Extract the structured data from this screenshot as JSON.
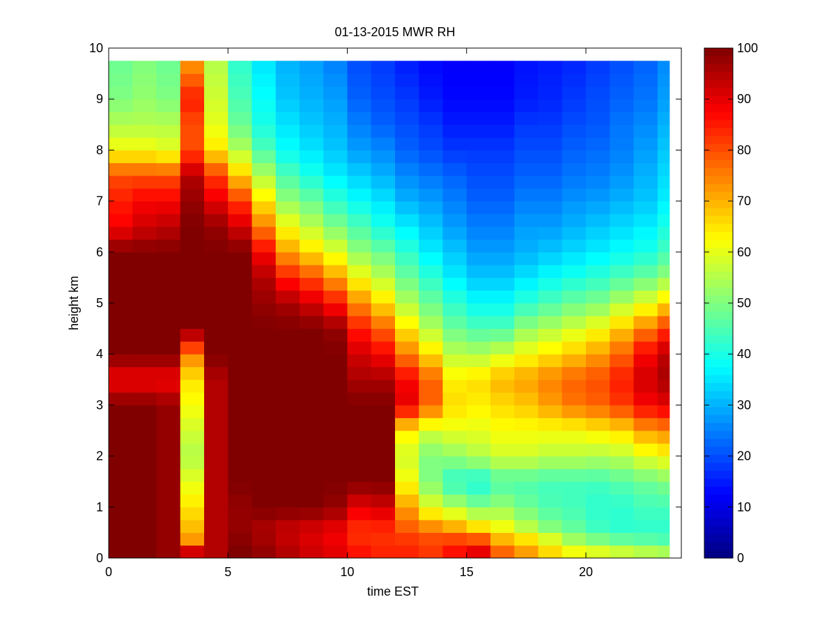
{
  "chart_data": {
    "type": "heatmap",
    "title": "01-13-2015 MWR RH",
    "xlabel": "time EST",
    "ylabel": "height km",
    "xlim": [
      0,
      24
    ],
    "ylim": [
      0,
      10
    ],
    "xticks": [
      0,
      5,
      10,
      15,
      20
    ],
    "yticks": [
      0,
      1,
      2,
      3,
      4,
      5,
      6,
      7,
      8,
      9,
      10
    ],
    "colorbar": {
      "label_ticks": [
        0,
        10,
        20,
        30,
        40,
        50,
        60,
        70,
        80,
        90,
        100
      ],
      "range": [
        0,
        100
      ],
      "colormap": "jet"
    },
    "x_centers": [
      0.5,
      1.5,
      2.5,
      3.5,
      4.5,
      5.5,
      6.5,
      7.5,
      8.5,
      9.5,
      10.5,
      11.5,
      12.5,
      13.5,
      14.5,
      15.5,
      16.5,
      17.5,
      18.5,
      19.5,
      20.5,
      21.5,
      22.5,
      23.5
    ],
    "y_knots": [
      0,
      0.1,
      0.25,
      0.5,
      1,
      1.5,
      2,
      2.5,
      3,
      3.5,
      4,
      4.5,
      5,
      5.5,
      6,
      6.5,
      7,
      7.5,
      8,
      8.5,
      9,
      9.75
    ],
    "profiles": [
      [
        88,
        100,
        100,
        100,
        100,
        100,
        100,
        100,
        100,
        88,
        100,
        100,
        100,
        100,
        100,
        88,
        85,
        80,
        62,
        55,
        50,
        48
      ],
      [
        88,
        100,
        100,
        100,
        100,
        100,
        100,
        100,
        100,
        88,
        100,
        100,
        100,
        100,
        100,
        92,
        88,
        80,
        62,
        55,
        52,
        50
      ],
      [
        90,
        98,
        98,
        98,
        98,
        98,
        98,
        98,
        98,
        88,
        100,
        100,
        100,
        100,
        100,
        94,
        88,
        80,
        60,
        55,
        50,
        48
      ],
      [
        92,
        95,
        75,
        70,
        65,
        60,
        55,
        58,
        62,
        65,
        75,
        100,
        100,
        100,
        100,
        100,
        98,
        95,
        80,
        80,
        85,
        72
      ],
      [
        92,
        95,
        95,
        95,
        95,
        95,
        95,
        95,
        95,
        95,
        100,
        100,
        100,
        100,
        100,
        98,
        90,
        82,
        65,
        60,
        58,
        55
      ],
      [
        90,
        100,
        100,
        98,
        98,
        100,
        100,
        100,
        100,
        100,
        100,
        100,
        100,
        100,
        100,
        92,
        82,
        68,
        55,
        48,
        45,
        42
      ],
      [
        90,
        98,
        98,
        95,
        100,
        100,
        100,
        100,
        100,
        100,
        100,
        100,
        98,
        95,
        88,
        75,
        65,
        55,
        45,
        40,
        38,
        35
      ],
      [
        86,
        95,
        95,
        92,
        100,
        100,
        100,
        100,
        100,
        100,
        100,
        100,
        96,
        85,
        72,
        62,
        52,
        45,
        38,
        35,
        32,
        30
      ],
      [
        84,
        92,
        92,
        90,
        100,
        100,
        100,
        100,
        100,
        100,
        100,
        100,
        92,
        80,
        66,
        56,
        48,
        40,
        35,
        32,
        30,
        28
      ],
      [
        82,
        90,
        90,
        88,
        98,
        100,
        100,
        100,
        100,
        100,
        100,
        98,
        86,
        72,
        60,
        50,
        42,
        36,
        32,
        30,
        28,
        25
      ],
      [
        78,
        86,
        85,
        82,
        90,
        100,
        100,
        100,
        100,
        96,
        92,
        85,
        74,
        62,
        52,
        45,
        38,
        33,
        28,
        25,
        22,
        20
      ],
      [
        72,
        84,
        84,
        82,
        92,
        100,
        100,
        100,
        100,
        96,
        88,
        78,
        66,
        56,
        48,
        40,
        35,
        30,
        26,
        22,
        20,
        18
      ],
      [
        62,
        84,
        84,
        80,
        72,
        62,
        58,
        64,
        90,
        88,
        75,
        65,
        55,
        48,
        42,
        36,
        30,
        26,
        22,
        20,
        18,
        15
      ],
      [
        45,
        82,
        82,
        78,
        60,
        50,
        50,
        58,
        78,
        78,
        66,
        55,
        48,
        42,
        36,
        32,
        28,
        24,
        20,
        18,
        15,
        13
      ],
      [
        40,
        86,
        86,
        75,
        55,
        42,
        52,
        60,
        66,
        64,
        56,
        48,
        42,
        36,
        32,
        28,
        25,
        22,
        18,
        15,
        13,
        12
      ],
      [
        35,
        90,
        88,
        70,
        50,
        40,
        55,
        60,
        64,
        66,
        55,
        45,
        38,
        32,
        28,
        25,
        22,
        20,
        18,
        15,
        13,
        12
      ],
      [
        30,
        78,
        75,
        64,
        52,
        45,
        58,
        62,
        66,
        70,
        58,
        45,
        38,
        32,
        28,
        25,
        22,
        20,
        18,
        15,
        13,
        12
      ],
      [
        30,
        72,
        72,
        58,
        48,
        45,
        58,
        62,
        68,
        72,
        62,
        52,
        42,
        35,
        30,
        28,
        25,
        22,
        20,
        18,
        15,
        14
      ],
      [
        30,
        66,
        66,
        52,
        45,
        44,
        56,
        62,
        72,
        75,
        65,
        55,
        45,
        38,
        32,
        28,
        25,
        22,
        20,
        18,
        16,
        15
      ],
      [
        32,
        62,
        58,
        48,
        44,
        44,
        56,
        62,
        76,
        78,
        68,
        58,
        48,
        40,
        34,
        30,
        27,
        24,
        22,
        20,
        18,
        16
      ],
      [
        35,
        60,
        55,
        44,
        42,
        44,
        55,
        64,
        78,
        80,
        72,
        62,
        50,
        42,
        36,
        32,
        28,
        25,
        23,
        21,
        20,
        18
      ],
      [
        38,
        58,
        52,
        42,
        42,
        46,
        56,
        66,
        82,
        85,
        78,
        68,
        55,
        45,
        38,
        34,
        30,
        27,
        25,
        24,
        22,
        20
      ],
      [
        40,
        56,
        50,
        42,
        44,
        48,
        60,
        72,
        88,
        92,
        88,
        75,
        60,
        48,
        40,
        36,
        32,
        30,
        28,
        26,
        24,
        22
      ],
      [
        42,
        55,
        48,
        42,
        44,
        50,
        62,
        74,
        90,
        96,
        94,
        82,
        66,
        52,
        44,
        40,
        36,
        34,
        32,
        30,
        28,
        26
      ]
    ]
  }
}
